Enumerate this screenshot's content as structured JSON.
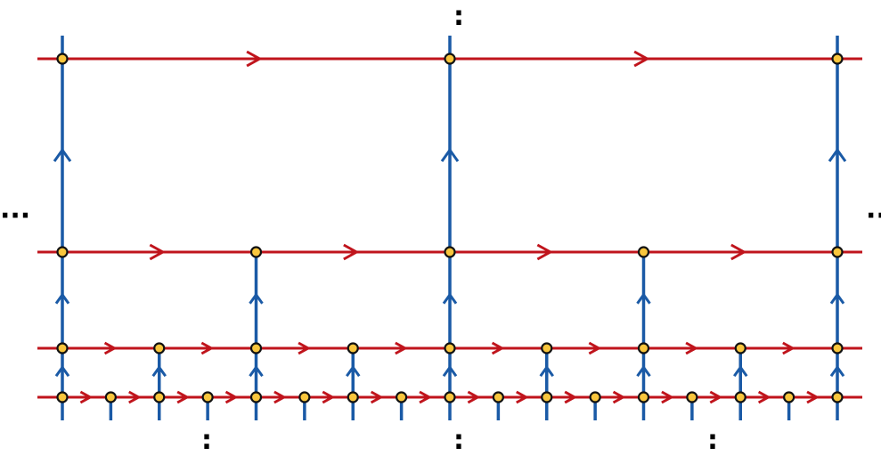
{
  "ellipses": {
    "top": ":",
    "bottom": [
      ":",
      ":",
      ":"
    ],
    "left": "···",
    "right": "··"
  }
}
